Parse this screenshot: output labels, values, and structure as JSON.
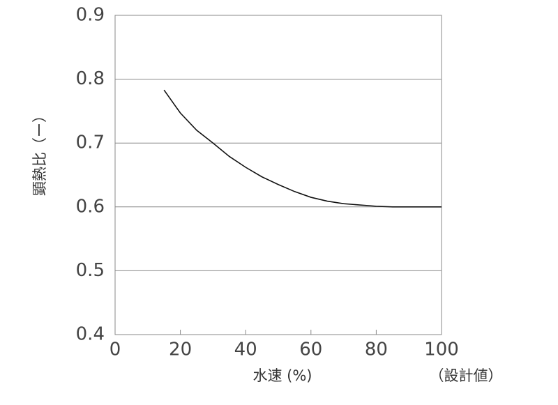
{
  "chart_data": {
    "type": "line",
    "x_label": "水速 (%)",
    "y_label": "顕熱比（ー）",
    "annotation": "（設計値）",
    "x": [
      15,
      20,
      25,
      30,
      35,
      40,
      45,
      50,
      55,
      60,
      65,
      70,
      75,
      80,
      85,
      90,
      95,
      100
    ],
    "series": [
      {
        "color": "#111111",
        "values": [
          0.783,
          0.747,
          0.72,
          0.7,
          0.679,
          0.662,
          0.647,
          0.635,
          0.624,
          0.615,
          0.609,
          0.605,
          0.603,
          0.601,
          0.6,
          0.6,
          0.6,
          0.6
        ]
      }
    ],
    "xlim": [
      0,
      100
    ],
    "xticks": [
      0,
      20,
      40,
      60,
      80,
      100
    ],
    "ylim": [
      0.4,
      0.9
    ],
    "yticks": [
      0.4,
      0.5,
      0.6,
      0.7,
      0.8,
      0.9
    ],
    "grid": true
  }
}
